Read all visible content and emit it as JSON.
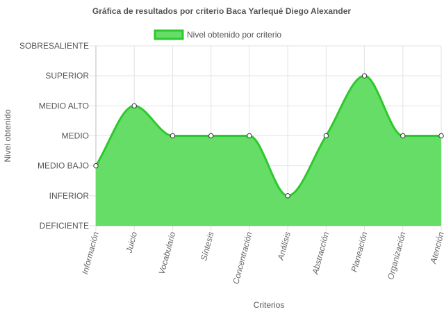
{
  "chart_data": {
    "type": "line",
    "title": "Gráfica de resultados por criterio Baca Yarlequé Diego Alexander",
    "xlabel": "Criterios",
    "ylabel": "Nivel obtenido",
    "categories": [
      "Información",
      "Juicio",
      "Vocabulario",
      "Síntesis",
      "Concentración",
      "Análisis",
      "Abstracción",
      "Planeación",
      "Organización",
      "Atención"
    ],
    "y_levels": [
      "DEFICIENTE",
      "INFERIOR",
      "MEDIO BAJO",
      "MEDIO",
      "MEDIO ALTO",
      "SUPERIOR",
      "SOBRESALIENTE"
    ],
    "ylim": [
      0,
      6
    ],
    "series": [
      {
        "name": "Nivel obtenido por criterio",
        "values": [
          2,
          4,
          3,
          3,
          3,
          1,
          3,
          5,
          3,
          3
        ],
        "line_color": "#2ec82e",
        "fill_color": "#66dd66"
      }
    ],
    "grid": true,
    "legend_position": "top",
    "fill": true,
    "smooth": true
  }
}
